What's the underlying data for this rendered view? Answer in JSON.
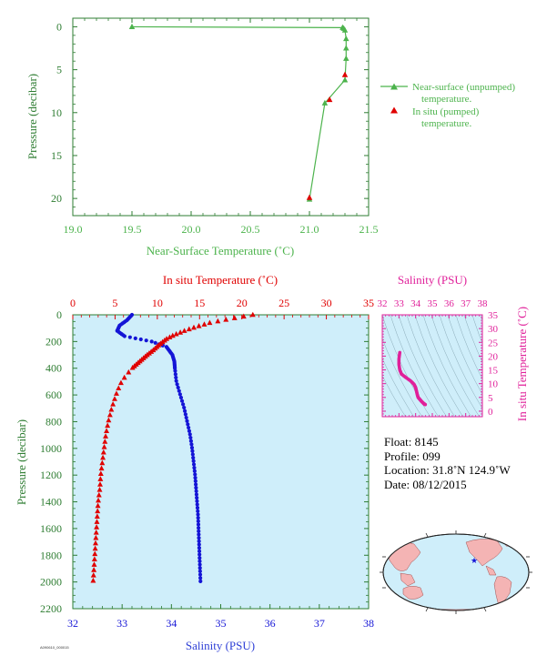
{
  "colors": {
    "green": "#4cb34c",
    "axis_green": "#2e7d32",
    "red": "#e00000",
    "blue": "#1414d6",
    "magenta": "#e0209a",
    "panel_bg": "#cfeefa",
    "land": "#f4b4b4"
  },
  "chart_data": [
    {
      "type": "line",
      "xlabel": "Near-Surface Temperature (˚C)",
      "ylabel": "Pressure (decibar)",
      "xlim": [
        19.0,
        21.5
      ],
      "ylim": [
        22,
        -1
      ],
      "xticks": [
        "19.0",
        "19.5",
        "20.0",
        "20.5",
        "21.0",
        "21.5"
      ],
      "yticks": [
        "0",
        "5",
        "10",
        "15",
        "20"
      ],
      "legend": [
        "Near-surface (unpumped) temperature.",
        "In situ (pumped) temperature."
      ],
      "legend_lines": [
        [
          "Near-surface (unpumped)",
          "temperature."
        ],
        [
          "In situ (pumped)",
          "temperature."
        ]
      ],
      "series": [
        {
          "name": "Near-surface (unpumped) temperature.",
          "points": [
            [
              19.5,
              0.0
            ],
            [
              21.28,
              0.1
            ],
            [
              21.29,
              0.2
            ],
            [
              21.3,
              0.4
            ],
            [
              21.31,
              1.4
            ],
            [
              21.31,
              2.5
            ],
            [
              21.31,
              3.7
            ],
            [
              21.3,
              6.2
            ],
            [
              21.13,
              8.9
            ],
            [
              21.0,
              20.1
            ]
          ]
        },
        {
          "name": "In situ (pumped) temperature.",
          "points": [
            [
              21.3,
              5.6
            ],
            [
              21.17,
              8.5
            ],
            [
              21.0,
              19.9
            ]
          ]
        }
      ]
    },
    {
      "type": "scatter",
      "xlabel": "Salinity (PSU)",
      "ylabel": "Pressure (decibar)",
      "top_xlabel": "In situ Temperature (˚C)",
      "xlim": [
        32,
        38
      ],
      "top_xlim": [
        0,
        35
      ],
      "ylim": [
        2200,
        0
      ],
      "xticks": [
        "32",
        "33",
        "34",
        "35",
        "36",
        "37",
        "38"
      ],
      "top_xticks": [
        "0",
        "5",
        "10",
        "15",
        "20",
        "25",
        "30",
        "35"
      ],
      "yticks": [
        "0",
        "200",
        "400",
        "600",
        "800",
        "1000",
        "1200",
        "1400",
        "1600",
        "1800",
        "2000",
        "2200"
      ],
      "temperature_profile": [
        [
          21.3,
          0
        ],
        [
          18.6,
          30
        ],
        [
          16.2,
          60
        ],
        [
          14.6,
          90
        ],
        [
          13.2,
          120
        ],
        [
          12.0,
          150
        ],
        [
          11.1,
          180
        ],
        [
          10.3,
          220
        ],
        [
          9.6,
          260
        ],
        [
          8.8,
          300
        ],
        [
          7.9,
          350
        ],
        [
          7.0,
          400
        ],
        [
          6.2,
          460
        ],
        [
          5.6,
          520
        ],
        [
          5.1,
          600
        ],
        [
          4.6,
          700
        ],
        [
          4.2,
          800
        ],
        [
          3.9,
          900
        ],
        [
          3.7,
          1000
        ],
        [
          3.5,
          1100
        ],
        [
          3.3,
          1200
        ],
        [
          3.2,
          1300
        ],
        [
          3.0,
          1400
        ],
        [
          2.9,
          1500
        ],
        [
          2.8,
          1600
        ],
        [
          2.7,
          1700
        ],
        [
          2.6,
          1800
        ],
        [
          2.5,
          1900
        ],
        [
          2.4,
          2000
        ]
      ],
      "salinity_profile": [
        [
          33.2,
          0
        ],
        [
          33.1,
          40
        ],
        [
          32.95,
          80
        ],
        [
          32.9,
          120
        ],
        [
          33.05,
          160
        ],
        [
          33.6,
          200
        ],
        [
          33.9,
          240
        ],
        [
          34.02,
          300
        ],
        [
          34.06,
          350
        ],
        [
          34.07,
          400
        ],
        [
          34.1,
          500
        ],
        [
          34.18,
          600
        ],
        [
          34.26,
          700
        ],
        [
          34.32,
          800
        ],
        [
          34.38,
          900
        ],
        [
          34.42,
          1000
        ],
        [
          34.45,
          1100
        ],
        [
          34.48,
          1200
        ],
        [
          34.5,
          1300
        ],
        [
          34.52,
          1400
        ],
        [
          34.54,
          1500
        ],
        [
          34.55,
          1600
        ],
        [
          34.56,
          1700
        ],
        [
          34.57,
          1800
        ],
        [
          34.58,
          1900
        ],
        [
          34.59,
          2000
        ]
      ]
    },
    {
      "type": "scatter",
      "xlabel": "Salinity (PSU)",
      "ylabel": "In situ Temperature (˚C)",
      "xlim": [
        32,
        38
      ],
      "ylim": [
        -2,
        35
      ],
      "xticks": [
        "32",
        "33",
        "34",
        "35",
        "36",
        "37",
        "38"
      ],
      "yticks": [
        "0",
        "5",
        "10",
        "15",
        "20",
        "25",
        "30",
        "35"
      ],
      "points": [
        [
          33.05,
          21.3
        ],
        [
          33.0,
          19.0
        ],
        [
          33.0,
          17.0
        ],
        [
          33.05,
          15.0
        ],
        [
          33.15,
          13.5
        ],
        [
          33.4,
          12.3
        ],
        [
          33.7,
          11.0
        ],
        [
          33.9,
          9.8
        ],
        [
          34.0,
          8.6
        ],
        [
          34.05,
          7.3
        ],
        [
          34.1,
          6.0
        ],
        [
          34.15,
          5.0
        ],
        [
          34.25,
          4.3
        ],
        [
          34.35,
          3.6
        ],
        [
          34.45,
          3.0
        ],
        [
          34.52,
          2.6
        ],
        [
          34.58,
          2.4
        ]
      ]
    }
  ],
  "float_info": {
    "float": "Float:  8145",
    "profile": "Profile:  099",
    "location": "Location:  31.8˚N  124.9˚W",
    "date": "Date:  08/12/2015"
  },
  "map": {
    "marker": "float-location"
  },
  "footer_code": "A090610_000015"
}
